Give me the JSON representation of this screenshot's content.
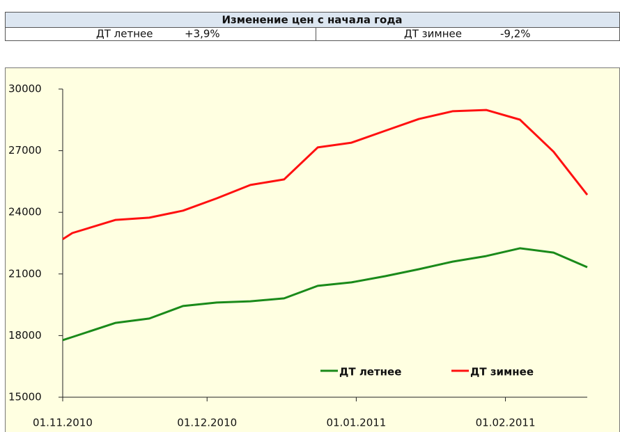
{
  "table": {
    "title": "Изменение цен с начала года",
    "rows": [
      [
        "ДТ летнее",
        "+3,9%",
        "ДТ зимнее",
        "-9,2%"
      ]
    ]
  },
  "chart_data": {
    "type": "line",
    "x": [
      "2010-11-01",
      "2010-11-03",
      "2010-11-12",
      "2010-11-19",
      "2010-11-26",
      "2010-12-03",
      "2010-12-10",
      "2010-12-17",
      "2010-12-24",
      "2010-12-31",
      "2011-01-07",
      "2011-01-14",
      "2011-01-21",
      "2011-01-28",
      "2011-02-04",
      "2011-02-11",
      "2011-02-18"
    ],
    "series": [
      {
        "name": "ДТ летнее",
        "color": "#1a8a1a",
        "values": [
          17780,
          17930,
          18620,
          18830,
          19440,
          19610,
          19670,
          19810,
          20420,
          20590,
          20890,
          21230,
          21600,
          21870,
          22250,
          22040,
          21330
        ]
      },
      {
        "name": "ДТ зимнее",
        "color": "#ff1010",
        "values": [
          22690,
          22990,
          23630,
          23740,
          24080,
          24680,
          25330,
          25600,
          27160,
          27390,
          27970,
          28540,
          28920,
          28980,
          28510,
          26950,
          24850
        ]
      }
    ],
    "xlim": [
      "2010-11-01",
      "2011-02-18"
    ],
    "xticks": [
      {
        "value": "2010-11-01",
        "label": "01.11.2010"
      },
      {
        "value": "2010-12-01",
        "label": "01.12.2010"
      },
      {
        "value": "2011-01-01",
        "label": "01.01.2011"
      },
      {
        "value": "2011-02-01",
        "label": "01.02.2011"
      }
    ],
    "ylim": [
      15000,
      30000
    ],
    "yticks": [
      15000,
      18000,
      21000,
      24000,
      27000,
      30000
    ],
    "legend": "bottom"
  }
}
